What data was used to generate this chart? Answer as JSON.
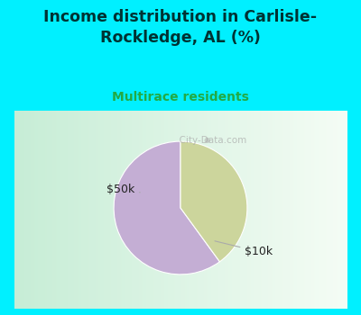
{
  "title": "Income distribution in Carlisle-\nRockledge, AL (%)",
  "subtitle": "Multirace residents",
  "slices": [
    60.0,
    40.0
  ],
  "labels": [
    "$10k",
    "$50k"
  ],
  "colors": [
    "#c4aed4",
    "#ccd59c"
  ],
  "title_color": "#003333",
  "subtitle_color": "#22aa44",
  "bg_cyan": "#00f0ff",
  "chart_bg_left": "#c8ecd8",
  "chart_bg_right": "#f0f8f0",
  "startangle": 90,
  "watermark": "  City-Data.com"
}
